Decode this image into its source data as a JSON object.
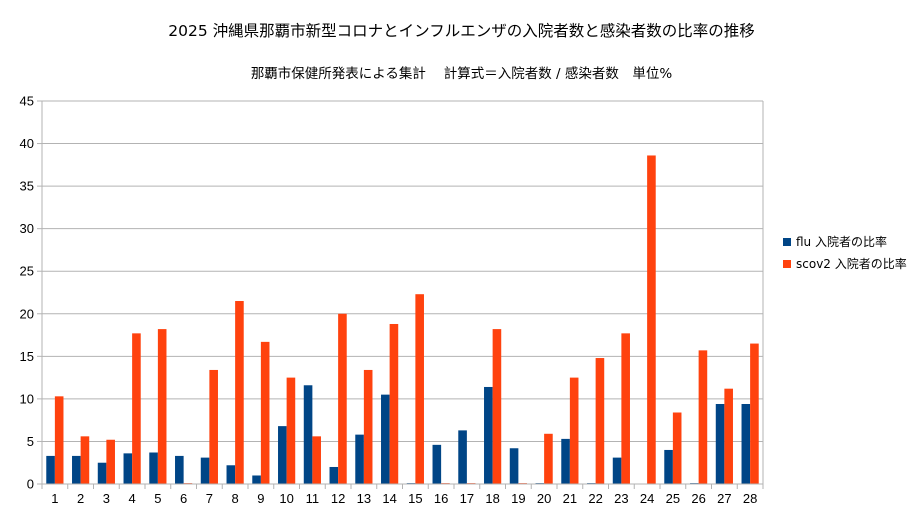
{
  "chart_data": {
    "type": "bar",
    "title": "2025 沖縄県那覇市新型コロナとインフルエンザの入院者数と感染者数の比率の推移",
    "subtitle": "那覇市保健所発表による集計　 計算式＝入院者数 / 感染者数　単位%",
    "categories": [
      "1",
      "2",
      "3",
      "4",
      "5",
      "6",
      "7",
      "8",
      "9",
      "10",
      "11",
      "12",
      "13",
      "14",
      "15",
      "16",
      "17",
      "18",
      "19",
      "20",
      "21",
      "22",
      "23",
      "24",
      "25",
      "26",
      "27",
      "28"
    ],
    "series": [
      {
        "name": "flu 入院者の比率",
        "color": "#004586",
        "values": [
          3.3,
          3.3,
          2.5,
          3.6,
          3.7,
          3.3,
          3.1,
          2.2,
          1.0,
          6.8,
          11.6,
          2.0,
          5.8,
          10.5,
          0.1,
          4.6,
          6.3,
          11.4,
          4.2,
          0.1,
          5.3,
          0.1,
          3.1,
          0.0,
          4.0,
          0.1,
          9.4,
          9.4
        ]
      },
      {
        "name": "scov2 入院者の比率",
        "color": "#ff420e",
        "values": [
          10.3,
          5.6,
          5.2,
          17.7,
          18.2,
          0.1,
          13.4,
          21.5,
          16.7,
          12.5,
          5.6,
          20.0,
          13.4,
          18.8,
          22.3,
          0.1,
          0.1,
          18.2,
          0.1,
          5.9,
          12.5,
          14.8,
          17.7,
          38.6,
          8.4,
          15.7,
          11.2,
          16.5
        ]
      }
    ],
    "ylim": [
      0,
      45
    ],
    "yticks": [
      "0",
      "5",
      "10",
      "15",
      "20",
      "25",
      "30",
      "35",
      "40",
      "45"
    ],
    "grid": true,
    "legend_position": "right"
  }
}
